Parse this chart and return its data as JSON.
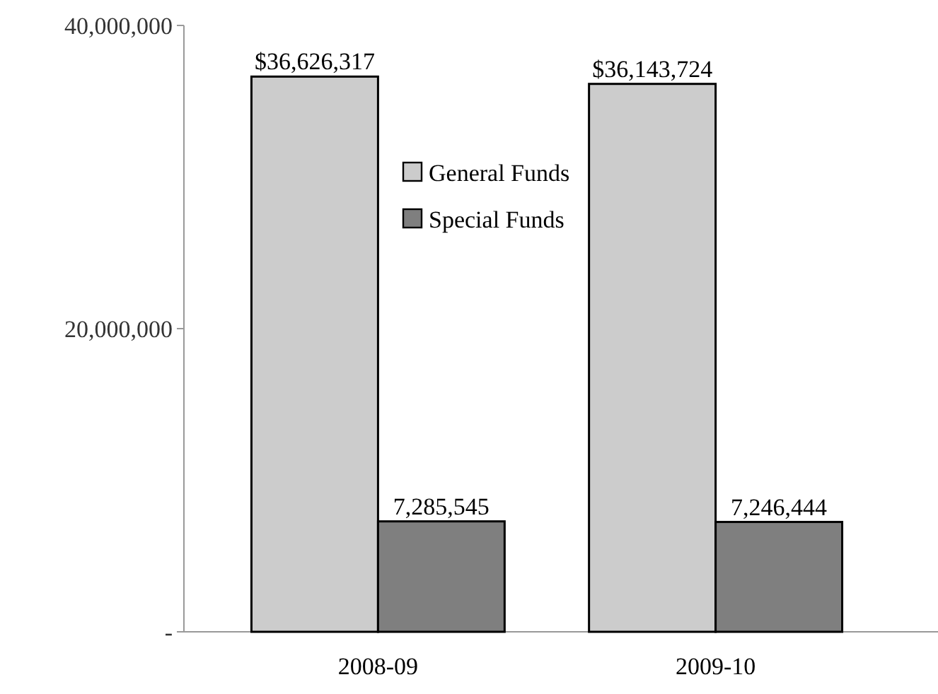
{
  "chart_data": {
    "type": "bar",
    "categories": [
      "2008-09",
      "2009-10"
    ],
    "series": [
      {
        "name": "General Funds",
        "color": "#cccccc",
        "values": [
          36626317,
          36143724
        ],
        "value_labels": [
          "$36,626,317",
          "$36,143,724"
        ]
      },
      {
        "name": "Special Funds",
        "color": "#7f7f7f",
        "values": [
          7285545,
          7246444
        ],
        "value_labels": [
          "7,285,545",
          "7,246,444"
        ]
      }
    ],
    "ylim": [
      0,
      40000000
    ],
    "yticks": [
      {
        "value": 0,
        "label": "-"
      },
      {
        "value": 20000000,
        "label": "20,000,000"
      },
      {
        "value": 40000000,
        "label": "40,000,000"
      }
    ],
    "grid": false,
    "legend": "top"
  }
}
